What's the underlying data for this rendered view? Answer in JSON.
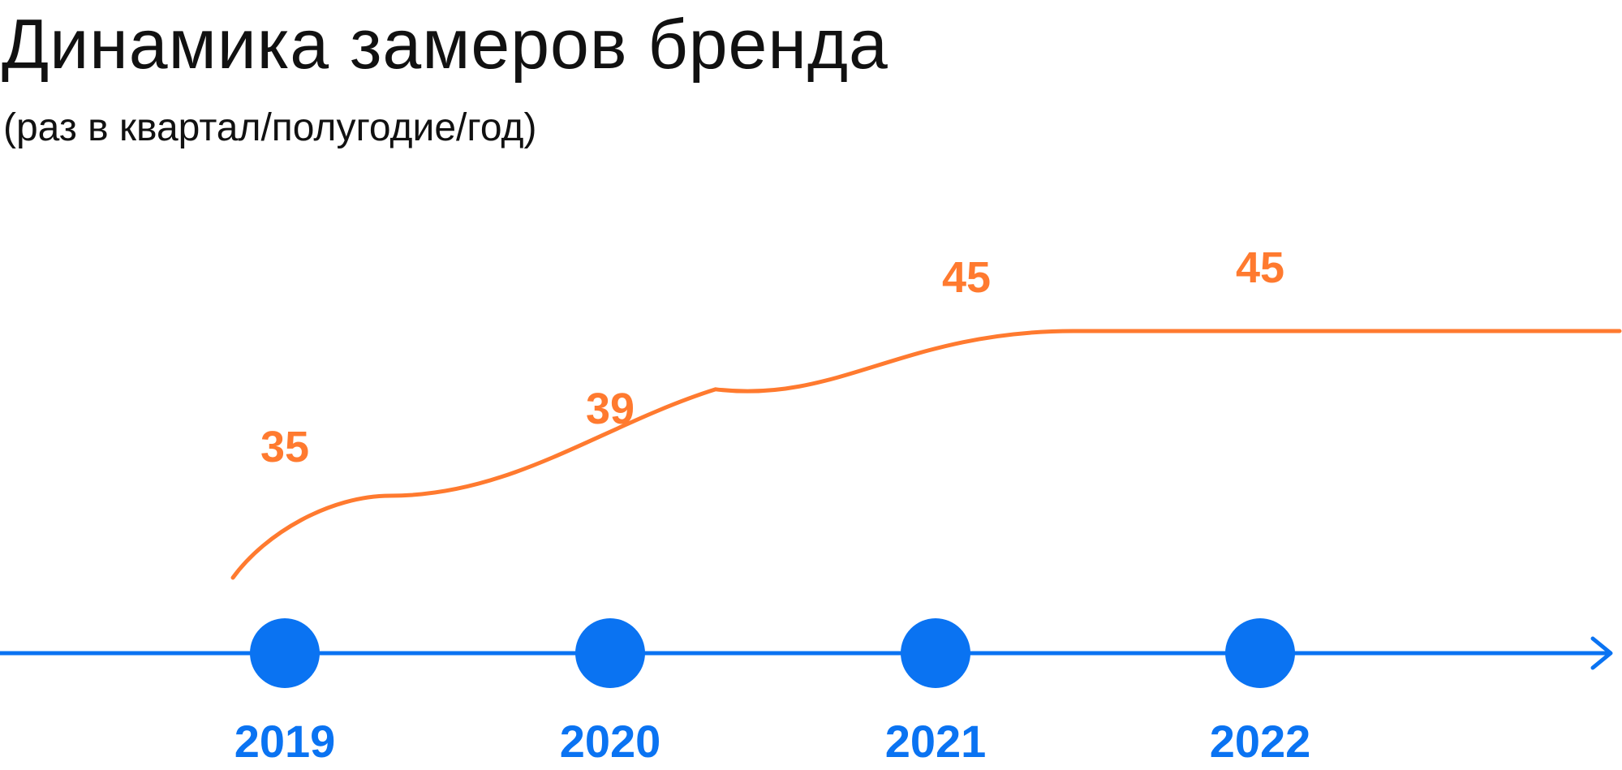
{
  "header": {
    "title": "Динамика замеров бренда",
    "subtitle": "(раз в квартал/полугодие/год)"
  },
  "colors": {
    "line": "#FF7A2F",
    "axis": "#0A73F2",
    "text": "#111111"
  },
  "chart_data": {
    "type": "line",
    "title": "Динамика замеров бренда",
    "subtitle": "(раз в квартал/полугодие/год)",
    "categories": [
      "2019",
      "2020",
      "2021",
      "2022"
    ],
    "series": [
      {
        "values": [
          35,
          39,
          45,
          45
        ]
      }
    ],
    "data_labels": [
      "35",
      "39",
      "45",
      "45"
    ],
    "xlabel": "",
    "ylabel": "",
    "grid": false,
    "legend": "none"
  }
}
